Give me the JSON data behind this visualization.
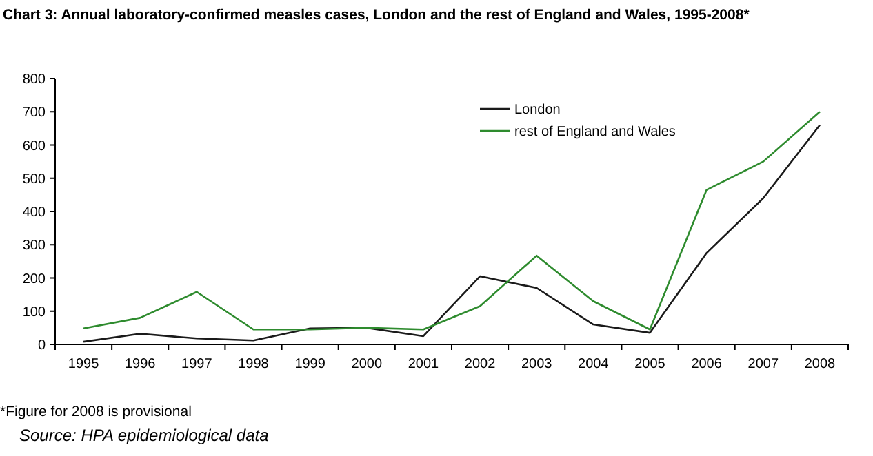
{
  "chart_data": {
    "type": "line",
    "title": "Chart 3: Annual laboratory-confirmed measles cases, London and the rest of England and Wales, 1995-2008*",
    "categories": [
      "1995",
      "1996",
      "1997",
      "1998",
      "1999",
      "2000",
      "2001",
      "2002",
      "2003",
      "2004",
      "2005",
      "2006",
      "2007",
      "2008"
    ],
    "series": [
      {
        "name": "London",
        "color": "#1a1a1a",
        "values": [
          8,
          32,
          18,
          12,
          48,
          50,
          25,
          205,
          170,
          60,
          35,
          275,
          440,
          660
        ]
      },
      {
        "name": "rest of England and Wales",
        "color": "#2e8b2e",
        "values": [
          48,
          80,
          158,
          45,
          45,
          50,
          45,
          115,
          267,
          130,
          45,
          465,
          550,
          700
        ]
      }
    ],
    "ylim": [
      0,
      800
    ],
    "yticks": [
      0,
      100,
      200,
      300,
      400,
      500,
      600,
      700,
      800
    ],
    "grid": false,
    "legend": "top",
    "marker": "none",
    "line_style": "solid",
    "annotations": [
      "*Figure for 2008 is provisional",
      "Source: HPA epidemiological data"
    ]
  }
}
